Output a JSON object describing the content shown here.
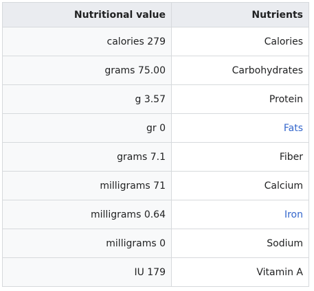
{
  "table": {
    "headers": {
      "value": "Nutritional value",
      "nutrient": "Nutrients"
    },
    "rows": [
      {
        "value": "calories 279",
        "nutrient": "Calories",
        "is_link": false
      },
      {
        "value": "grams 75.00",
        "nutrient": "Carbohydrates",
        "is_link": false
      },
      {
        "value": "g 3.57",
        "nutrient": "Protein",
        "is_link": false
      },
      {
        "value": "gr 0",
        "nutrient": "Fats",
        "is_link": true
      },
      {
        "value": "grams 7.1",
        "nutrient": "Fiber",
        "is_link": false
      },
      {
        "value": "milligrams 71",
        "nutrient": "Calcium",
        "is_link": false
      },
      {
        "value": "milligrams 0.64",
        "nutrient": "Iron",
        "is_link": true
      },
      {
        "value": "milligrams 0",
        "nutrient": "Sodium",
        "is_link": false
      },
      {
        "value": "IU 179",
        "nutrient": "Vitamin A",
        "is_link": false
      }
    ]
  },
  "colors": {
    "link": "#3366cc",
    "header_bg": "#eaecf0",
    "border": "#d6d9dc"
  }
}
